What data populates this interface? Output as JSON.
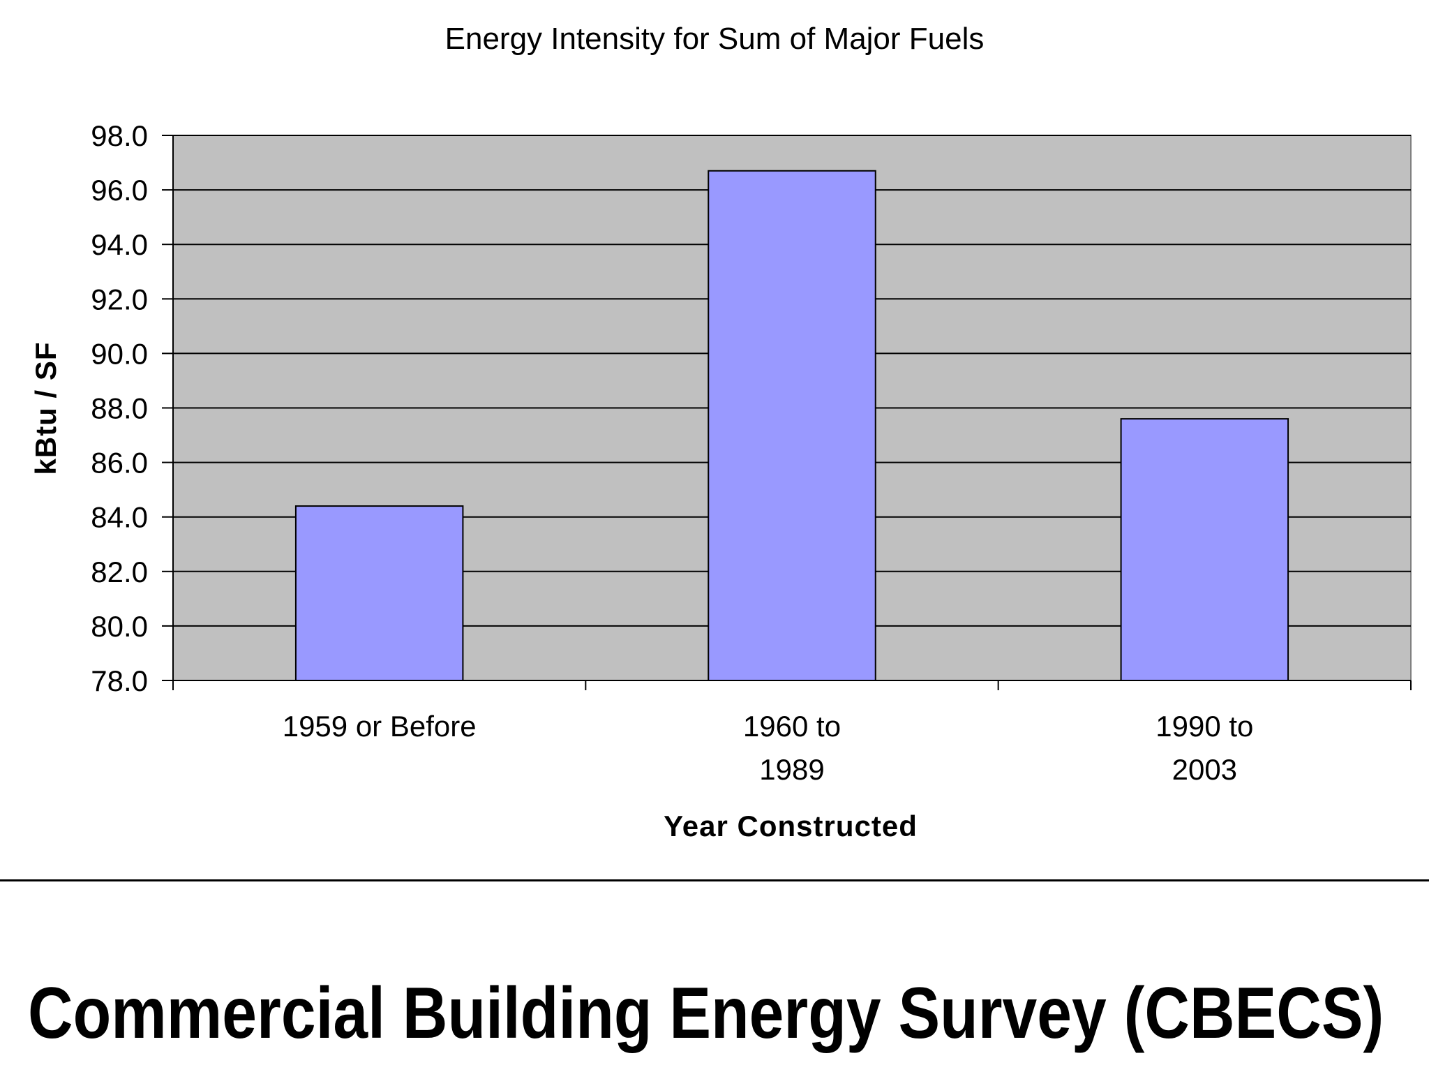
{
  "chart_data": {
    "type": "bar",
    "title": "Energy Intensity for Sum of Major Fuels",
    "xlabel": "Year Constructed",
    "ylabel": "kBtu / SF",
    "categories": [
      [
        "1959 or Before"
      ],
      [
        "1960 to",
        "1989"
      ],
      [
        "1990 to",
        "2003"
      ]
    ],
    "values": [
      84.4,
      96.7,
      87.6
    ],
    "ylim": [
      78.0,
      98.0
    ],
    "yticks": [
      "78.0",
      "80.0",
      "82.0",
      "84.0",
      "86.0",
      "88.0",
      "90.0",
      "92.0",
      "94.0",
      "96.0",
      "98.0"
    ],
    "grid": true,
    "bar_color": "#9999ff",
    "plot_background": "#c0c0c0"
  },
  "footer": {
    "title": "Commercial Building Energy Survey (CBECS)"
  }
}
